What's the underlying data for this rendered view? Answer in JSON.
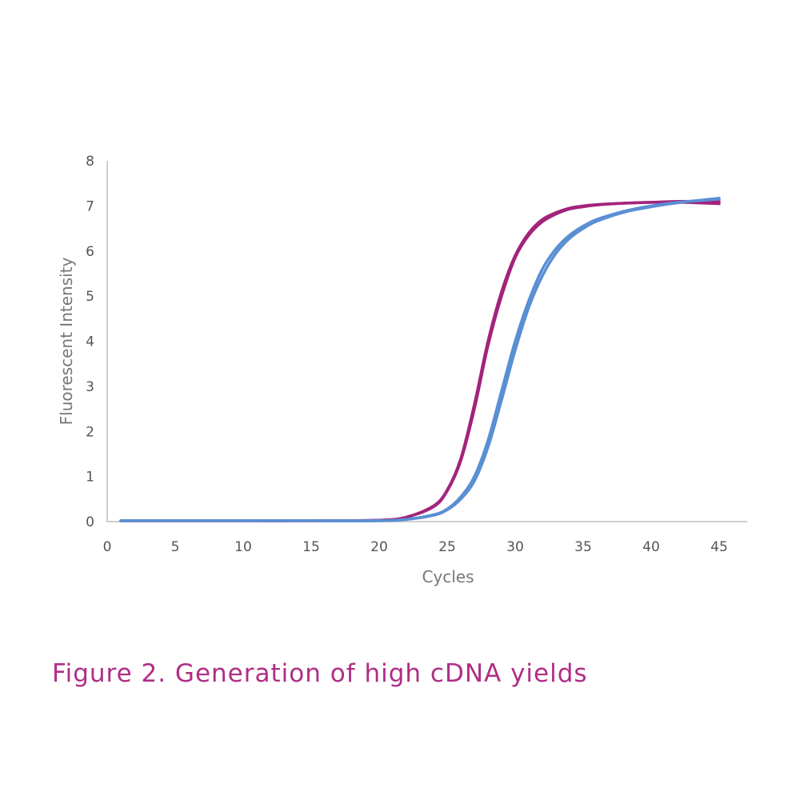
{
  "caption": "Figure 2. Generation of high cDNA yields",
  "colors": {
    "magenta": "#a3237c",
    "blue": "#5a8fd3",
    "caption": "#b02d86",
    "axis": "#bfbfbf"
  },
  "chart_data": {
    "type": "line",
    "xlabel": "Cycles",
    "ylabel": "Fluorescent Intensity",
    "xlim": [
      0,
      47
    ],
    "ylim": [
      0,
      8
    ],
    "xticks": [
      0,
      5,
      10,
      15,
      20,
      25,
      30,
      35,
      40,
      45
    ],
    "yticks": [
      0,
      1,
      2,
      3,
      4,
      5,
      6,
      7,
      8
    ],
    "grid": false,
    "x": [
      1,
      5,
      10,
      15,
      20,
      22,
      24,
      25,
      26,
      27,
      28,
      29,
      30,
      31,
      32,
      33,
      34,
      35,
      36,
      38,
      40,
      42,
      45
    ],
    "series": [
      {
        "color": "#a3237c",
        "values": [
          0.02,
          0.02,
          0.02,
          0.02,
          0.03,
          0.1,
          0.35,
          0.7,
          1.4,
          2.6,
          4.0,
          5.1,
          5.9,
          6.4,
          6.7,
          6.85,
          6.95,
          7.0,
          7.03,
          7.06,
          7.08,
          7.08,
          7.05
        ]
      },
      {
        "color": "#a3237c",
        "values": [
          0.02,
          0.02,
          0.02,
          0.02,
          0.03,
          0.1,
          0.33,
          0.68,
          1.35,
          2.5,
          3.9,
          5.0,
          5.85,
          6.35,
          6.65,
          6.82,
          6.93,
          6.98,
          7.02,
          7.06,
          7.08,
          7.1,
          7.1
        ]
      },
      {
        "color": "#5a8fd3",
        "values": [
          0.02,
          0.02,
          0.02,
          0.02,
          0.02,
          0.05,
          0.15,
          0.28,
          0.55,
          1.0,
          1.8,
          2.9,
          4.0,
          4.9,
          5.6,
          6.05,
          6.35,
          6.55,
          6.7,
          6.88,
          7.0,
          7.08,
          7.15
        ]
      },
      {
        "color": "#5a8fd3",
        "values": [
          0.02,
          0.02,
          0.02,
          0.02,
          0.02,
          0.05,
          0.14,
          0.26,
          0.5,
          0.9,
          1.65,
          2.7,
          3.8,
          4.75,
          5.45,
          5.95,
          6.28,
          6.5,
          6.66,
          6.86,
          6.98,
          7.07,
          7.17
        ]
      }
    ]
  }
}
